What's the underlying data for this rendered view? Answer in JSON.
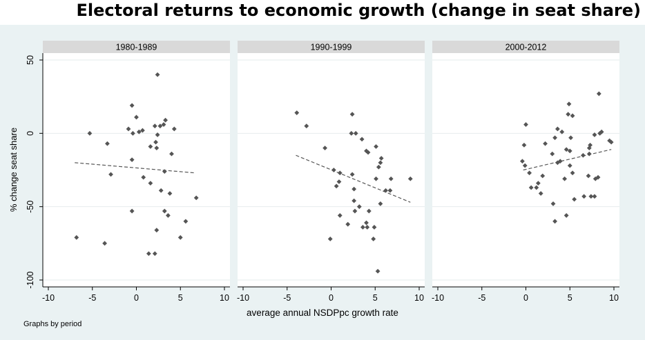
{
  "page_title": "Electoral returns to economic growth (change in seat share)",
  "note": "Graphs by period",
  "chart_data": {
    "type": "scatter",
    "ylabel": "% change seat share",
    "xlabel": "average annual NSDPpc growth rate",
    "xlim": [
      -10,
      10
    ],
    "ylim": [
      -100,
      50
    ],
    "x_ticks": [
      -10,
      -5,
      0,
      5,
      10
    ],
    "y_ticks": [
      50,
      0,
      -50,
      -100
    ],
    "grid": true,
    "colors": {
      "points": "#555555",
      "fit": "#555555",
      "strip": "#d9d9d9",
      "panel_bg": "#ffffff",
      "outer_bg": "#eaf2f3",
      "grid": "#e6ecee"
    },
    "panels": [
      {
        "label": "1980-1989",
        "fit": {
          "x": [
            -7,
            6.7
          ],
          "y": [
            -20,
            -27
          ]
        },
        "points": [
          {
            "x": 2.4,
            "y": 40
          },
          {
            "x": -0.5,
            "y": 19
          },
          {
            "x": 0,
            "y": 11
          },
          {
            "x": 3.3,
            "y": 9
          },
          {
            "x": 3.1,
            "y": 6
          },
          {
            "x": 2.7,
            "y": 5
          },
          {
            "x": 2.1,
            "y": 5
          },
          {
            "x": -0.9,
            "y": 3
          },
          {
            "x": 0.7,
            "y": 2
          },
          {
            "x": 4.3,
            "y": 3
          },
          {
            "x": -5.3,
            "y": 0
          },
          {
            "x": -0.4,
            "y": 0
          },
          {
            "x": 0.3,
            "y": 1
          },
          {
            "x": 2.4,
            "y": -1
          },
          {
            "x": 2.2,
            "y": -6
          },
          {
            "x": -3.3,
            "y": -7
          },
          {
            "x": 1.6,
            "y": -9
          },
          {
            "x": 2.3,
            "y": -10
          },
          {
            "x": 4.0,
            "y": -14
          },
          {
            "x": -0.5,
            "y": -18
          },
          {
            "x": 3.2,
            "y": -26
          },
          {
            "x": -2.9,
            "y": -28
          },
          {
            "x": 0.8,
            "y": -30
          },
          {
            "x": 1.6,
            "y": -34
          },
          {
            "x": 2.8,
            "y": -39
          },
          {
            "x": 3.8,
            "y": -41
          },
          {
            "x": 6.8,
            "y": -44
          },
          {
            "x": -0.5,
            "y": -53
          },
          {
            "x": 3.2,
            "y": -53
          },
          {
            "x": 3.6,
            "y": -56
          },
          {
            "x": 5.6,
            "y": -60
          },
          {
            "x": 2.3,
            "y": -66
          },
          {
            "x": -6.8,
            "y": -71
          },
          {
            "x": 5.0,
            "y": -71
          },
          {
            "x": -3.6,
            "y": -75
          },
          {
            "x": 1.4,
            "y": -82
          },
          {
            "x": 2.1,
            "y": -82
          }
        ]
      },
      {
        "label": "1990-1999",
        "fit": {
          "x": [
            -4,
            9
          ],
          "y": [
            -15,
            -47
          ]
        },
        "points": [
          {
            "x": -3.9,
            "y": 14
          },
          {
            "x": 2.4,
            "y": 13
          },
          {
            "x": -2.8,
            "y": 5
          },
          {
            "x": 2.3,
            "y": 0
          },
          {
            "x": 2.8,
            "y": 0
          },
          {
            "x": 3.5,
            "y": -4
          },
          {
            "x": -0.7,
            "y": -10
          },
          {
            "x": 4.0,
            "y": -12
          },
          {
            "x": 4.2,
            "y": -13
          },
          {
            "x": 5.1,
            "y": -9
          },
          {
            "x": 5.7,
            "y": -17
          },
          {
            "x": 5.6,
            "y": -20
          },
          {
            "x": 5.4,
            "y": -23
          },
          {
            "x": 0.3,
            "y": -25
          },
          {
            "x": 1.0,
            "y": -27
          },
          {
            "x": 2.4,
            "y": -28
          },
          {
            "x": 6.8,
            "y": -31
          },
          {
            "x": 5.1,
            "y": -31
          },
          {
            "x": 0.9,
            "y": -33
          },
          {
            "x": 9.0,
            "y": -31
          },
          {
            "x": 2.6,
            "y": -38
          },
          {
            "x": 6.2,
            "y": -39
          },
          {
            "x": 6.7,
            "y": -39
          },
          {
            "x": 0.6,
            "y": -36
          },
          {
            "x": 2.6,
            "y": -46
          },
          {
            "x": 3.2,
            "y": -50
          },
          {
            "x": 5.6,
            "y": -48
          },
          {
            "x": 2.7,
            "y": -53
          },
          {
            "x": 4.3,
            "y": -53
          },
          {
            "x": 1.0,
            "y": -56
          },
          {
            "x": 4.0,
            "y": -61
          },
          {
            "x": 1.9,
            "y": -62
          },
          {
            "x": 3.6,
            "y": -64
          },
          {
            "x": 4.1,
            "y": -64
          },
          {
            "x": 4.9,
            "y": -64
          },
          {
            "x": -0.1,
            "y": -72
          },
          {
            "x": 4.8,
            "y": -72
          },
          {
            "x": 5.3,
            "y": -94
          }
        ]
      },
      {
        "label": "2000-2012",
        "fit": {
          "x": [
            -0.3,
            9.7
          ],
          "y": [
            -25,
            -11
          ]
        },
        "points": [
          {
            "x": 8.3,
            "y": 27
          },
          {
            "x": 4.9,
            "y": 20
          },
          {
            "x": 5.3,
            "y": 12
          },
          {
            "x": 4.8,
            "y": 13
          },
          {
            "x": 0,
            "y": 6
          },
          {
            "x": 3.6,
            "y": 3
          },
          {
            "x": 4.1,
            "y": 1
          },
          {
            "x": 8.6,
            "y": 1
          },
          {
            "x": 8.4,
            "y": 0
          },
          {
            "x": 7.8,
            "y": -1
          },
          {
            "x": 5.1,
            "y": -3
          },
          {
            "x": 3.3,
            "y": -3
          },
          {
            "x": 9.5,
            "y": -5
          },
          {
            "x": 9.7,
            "y": -6
          },
          {
            "x": 2.2,
            "y": -7
          },
          {
            "x": -0.2,
            "y": -8
          },
          {
            "x": 7.3,
            "y": -8
          },
          {
            "x": 7.2,
            "y": -10
          },
          {
            "x": 4.6,
            "y": -11
          },
          {
            "x": 5.0,
            "y": -12
          },
          {
            "x": 3.0,
            "y": -14
          },
          {
            "x": 7.2,
            "y": -14
          },
          {
            "x": 6.5,
            "y": -15
          },
          {
            "x": 3.9,
            "y": -19
          },
          {
            "x": -0.4,
            "y": -19
          },
          {
            "x": 3.6,
            "y": -20
          },
          {
            "x": 5.0,
            "y": -22
          },
          {
            "x": -0.1,
            "y": -22
          },
          {
            "x": 0.4,
            "y": -27
          },
          {
            "x": 1.9,
            "y": -29
          },
          {
            "x": 5.3,
            "y": -27
          },
          {
            "x": 4.4,
            "y": -31
          },
          {
            "x": 7.1,
            "y": -29
          },
          {
            "x": 7.9,
            "y": -31
          },
          {
            "x": 8.2,
            "y": -30
          },
          {
            "x": 1.4,
            "y": -34
          },
          {
            "x": 0.6,
            "y": -37
          },
          {
            "x": 1.2,
            "y": -37
          },
          {
            "x": 1.7,
            "y": -41
          },
          {
            "x": 6.6,
            "y": -43
          },
          {
            "x": 7.4,
            "y": -43
          },
          {
            "x": 7.8,
            "y": -43
          },
          {
            "x": 5.5,
            "y": -45
          },
          {
            "x": 3.1,
            "y": -48
          },
          {
            "x": 4.6,
            "y": -56
          },
          {
            "x": 3.3,
            "y": -60
          }
        ]
      }
    ]
  }
}
